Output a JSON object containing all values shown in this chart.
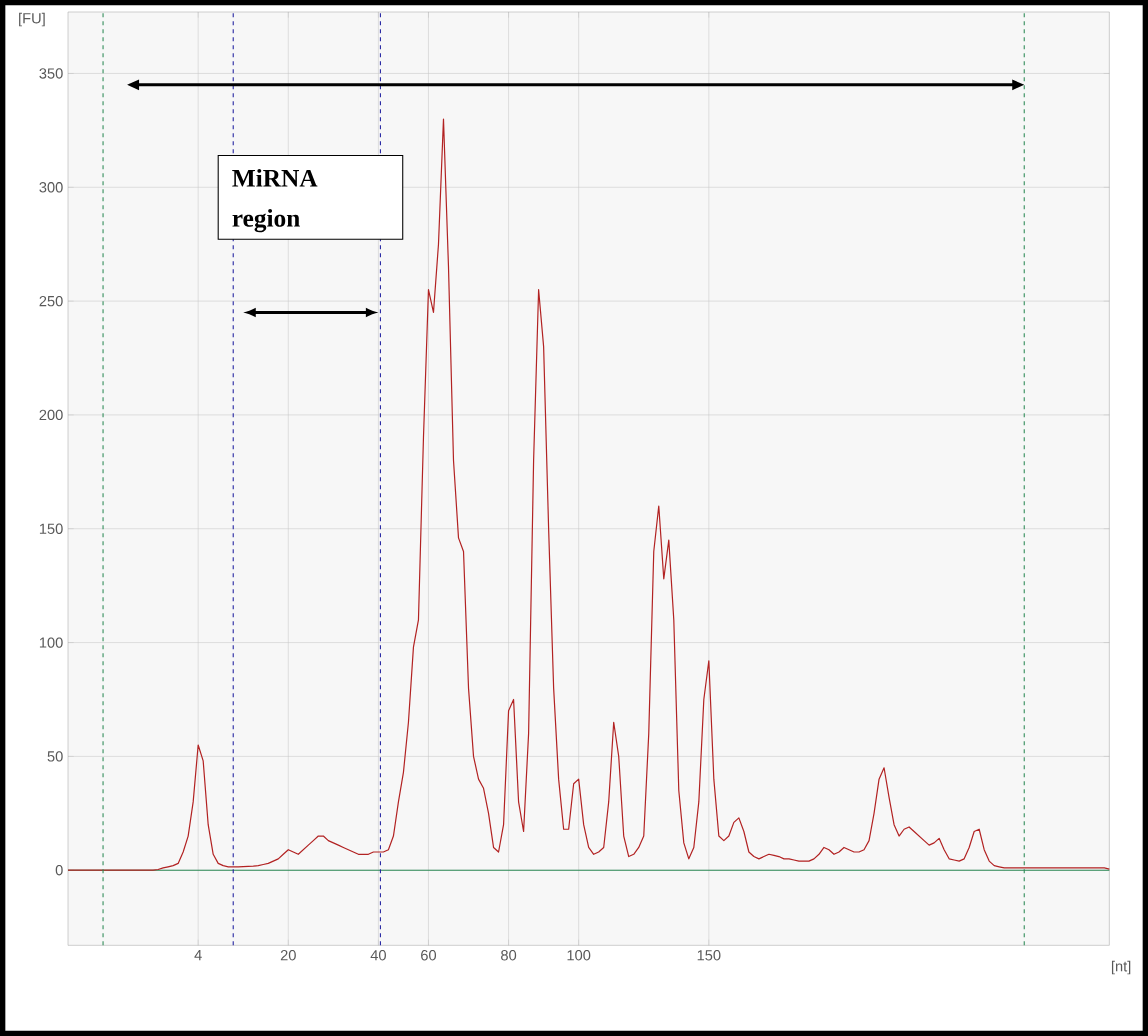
{
  "chart_data": {
    "type": "line",
    "xlabel": "[nt]",
    "ylabel": "[FU]",
    "annotations": [
      "MiRNA region"
    ],
    "categories": [
      null,
      null,
      null,
      null,
      null,
      null,
      null,
      null,
      null,
      null,
      null,
      null,
      null,
      null,
      null,
      null,
      null,
      null,
      null,
      null,
      null,
      null,
      null,
      null,
      null,
      null,
      "4",
      null,
      null,
      null,
      null,
      null,
      null,
      null,
      null,
      null,
      null,
      null,
      null,
      null,
      null,
      null,
      null,
      null,
      "20",
      null,
      null,
      null,
      null,
      null,
      null,
      null,
      null,
      null,
      null,
      null,
      null,
      null,
      null,
      null,
      null,
      null,
      "40",
      null,
      null,
      null,
      null,
      null,
      null,
      null,
      null,
      null,
      "60",
      null,
      null,
      null,
      null,
      null,
      null,
      null,
      null,
      null,
      null,
      null,
      null,
      null,
      null,
      null,
      "80",
      null,
      null,
      null,
      null,
      null,
      null,
      null,
      null,
      null,
      null,
      null,
      null,
      null,
      "100",
      null,
      null,
      null,
      null,
      null,
      null,
      null,
      null,
      null,
      null,
      null,
      null,
      null,
      null,
      null,
      null,
      null,
      null,
      null,
      null,
      null,
      null,
      null,
      null,
      null,
      "150",
      null,
      null,
      null,
      null,
      null,
      null,
      null,
      null,
      null,
      null,
      null,
      null,
      null,
      null,
      null,
      null,
      null,
      null,
      null,
      null,
      null,
      null,
      null,
      null,
      null,
      null,
      null,
      null,
      null,
      null,
      null,
      null,
      null,
      null,
      null,
      null,
      null,
      null,
      null,
      null,
      null,
      null,
      null,
      null,
      null,
      null,
      null,
      null,
      null,
      null,
      null,
      null,
      null,
      null,
      null,
      null,
      null,
      null,
      null,
      null,
      null,
      null,
      null,
      null,
      null,
      null,
      null,
      null,
      null,
      null,
      null,
      null,
      null,
      null,
      null,
      null,
      null,
      null,
      null,
      null
    ],
    "series": [
      {
        "color": "#b22222",
        "values": [
          0,
          0,
          0,
          0,
          0,
          0,
          0,
          0,
          0,
          0,
          0,
          0,
          0,
          0,
          0,
          0,
          0,
          0,
          0.3,
          1,
          1.5,
          2,
          3,
          8,
          15,
          30,
          55,
          48,
          20,
          7,
          3,
          2,
          1.5,
          1.5,
          1.5,
          1.6,
          1.7,
          1.8,
          2,
          2.5,
          3,
          4,
          5,
          7,
          9,
          8,
          7,
          9,
          11,
          13,
          15,
          15,
          13,
          12,
          11,
          10,
          9,
          8,
          7,
          7,
          7,
          8,
          8,
          8,
          9,
          15,
          30,
          43,
          65,
          98,
          110,
          190,
          255,
          245,
          275,
          330,
          265,
          180,
          146,
          140,
          80,
          50,
          40,
          36,
          25,
          10,
          8,
          20,
          70,
          75,
          30,
          17,
          60,
          180,
          255,
          230,
          150,
          80,
          40,
          18,
          18,
          38,
          40,
          20,
          10,
          7,
          8,
          10,
          30,
          65,
          50,
          15,
          6,
          7,
          10,
          15,
          60,
          140,
          160,
          128,
          145,
          110,
          35,
          12,
          5,
          10,
          30,
          75,
          92,
          40,
          15,
          13,
          15,
          21,
          23,
          17,
          8,
          6,
          5,
          6,
          7,
          6.5,
          6,
          5,
          5,
          4.5,
          4,
          4,
          4,
          5,
          7,
          10,
          9,
          7,
          8,
          10,
          9,
          8,
          8,
          9,
          13,
          25,
          40,
          45,
          32,
          20,
          15,
          18,
          19,
          17,
          15,
          13,
          11,
          12,
          14,
          9,
          5,
          4.5,
          4,
          5,
          10,
          17,
          18,
          9,
          4,
          2,
          1.5,
          1,
          1,
          1,
          1,
          1,
          1,
          1,
          1,
          1,
          1,
          1,
          1,
          1,
          1,
          1,
          1,
          1,
          1,
          1,
          1,
          1,
          0.5
        ]
      }
    ],
    "ylim": [
      -33,
      377
    ],
    "yticks": [
      0,
      50,
      100,
      150,
      200,
      250,
      300,
      350
    ],
    "ref_lines": [
      {
        "axis": "y",
        "value": 0,
        "color": "#2e8b57",
        "line_style": "solid"
      }
    ],
    "grid": true,
    "marker": "none",
    "line_style": "solid"
  }
}
